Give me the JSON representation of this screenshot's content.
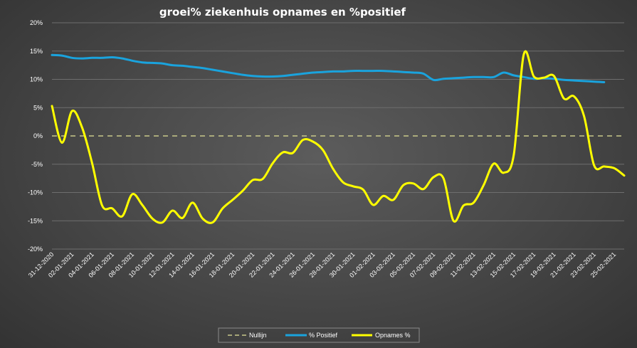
{
  "chart_data": {
    "type": "line",
    "title": "groei% ziekenhuis opnames en %positief",
    "xlabel": "",
    "ylabel": "",
    "ylim": [
      -20,
      20
    ],
    "y_ticks": [
      20,
      15,
      10,
      5,
      0,
      -5,
      -10,
      -15,
      -20
    ],
    "y_tick_labels": [
      "20%",
      "15%",
      "10%",
      "5%",
      "0%",
      "-5%",
      "-10%",
      "-15%",
      "-20%"
    ],
    "x_start": "31-12-2020",
    "x_end": "26-02-2021",
    "x_tick_labels": [
      "31-12-2020",
      "02-01-2021",
      "04-01-2021",
      "06-01-2021",
      "08-01-2021",
      "10-01-2021",
      "12-01-2021",
      "14-01-2021",
      "16-01-2021",
      "18-01-2021",
      "20-01-2021",
      "22-01-2021",
      "24-01-2021",
      "26-01-2021",
      "28-01-2021",
      "30-01-2021",
      "01-02-2021",
      "03-02-2021",
      "05-02-2021",
      "07-02-2021",
      "09-02-2021",
      "11-02-2021",
      "13-02-2021",
      "15-02-2021",
      "17-02-2021",
      "19-02-2021",
      "21-02-2021",
      "23-02-2021",
      "25-02-2021"
    ],
    "grid": true,
    "legend_position": "bottom",
    "series": [
      {
        "name": "Nullijn",
        "color": "#c9c98a",
        "dashed": true,
        "x": [
          "31-12-2020",
          "26-02-2021"
        ],
        "values": [
          0,
          0
        ]
      },
      {
        "name": "% Positief",
        "color": "#1aa3dd",
        "dashed": false,
        "x": [
          "31-12-2020",
          "01-01-2021",
          "02-01-2021",
          "03-01-2021",
          "04-01-2021",
          "05-01-2021",
          "06-01-2021",
          "07-01-2021",
          "08-01-2021",
          "09-01-2021",
          "10-01-2021",
          "11-01-2021",
          "12-01-2021",
          "13-01-2021",
          "14-01-2021",
          "15-01-2021",
          "16-01-2021",
          "17-01-2021",
          "18-01-2021",
          "19-01-2021",
          "20-01-2021",
          "21-01-2021",
          "22-01-2021",
          "23-01-2021",
          "24-01-2021",
          "25-01-2021",
          "26-01-2021",
          "27-01-2021",
          "28-01-2021",
          "29-01-2021",
          "30-01-2021",
          "31-01-2021",
          "01-02-2021",
          "02-02-2021",
          "03-02-2021",
          "04-02-2021",
          "05-02-2021",
          "06-02-2021",
          "07-02-2021",
          "08-02-2021",
          "09-02-2021",
          "10-02-2021",
          "11-02-2021",
          "12-02-2021",
          "13-02-2021",
          "14-02-2021",
          "15-02-2021",
          "16-02-2021",
          "17-02-2021",
          "18-02-2021",
          "19-02-2021",
          "20-02-2021",
          "21-02-2021",
          "22-02-2021",
          "23-02-2021",
          "24-02-2021"
        ],
        "values": [
          14.3,
          14.2,
          13.8,
          13.7,
          13.8,
          13.8,
          13.9,
          13.7,
          13.3,
          13.0,
          12.9,
          12.8,
          12.5,
          12.4,
          12.2,
          12.0,
          11.7,
          11.4,
          11.1,
          10.8,
          10.6,
          10.5,
          10.5,
          10.6,
          10.8,
          11.0,
          11.2,
          11.3,
          11.4,
          11.4,
          11.5,
          11.5,
          11.5,
          11.5,
          11.4,
          11.3,
          11.2,
          11.0,
          9.9,
          10.1,
          10.2,
          10.3,
          10.4,
          10.4,
          10.4,
          11.2,
          10.7,
          10.4,
          10.1,
          10.2,
          10.1,
          9.9,
          9.8,
          9.7,
          9.6,
          9.5
        ]
      },
      {
        "name": "Opnames %",
        "color": "#ffff00",
        "dashed": false,
        "x": [
          "31-12-2020",
          "01-01-2021",
          "02-01-2021",
          "03-01-2021",
          "04-01-2021",
          "05-01-2021",
          "06-01-2021",
          "07-01-2021",
          "08-01-2021",
          "09-01-2021",
          "10-01-2021",
          "11-01-2021",
          "12-01-2021",
          "13-01-2021",
          "14-01-2021",
          "15-01-2021",
          "16-01-2021",
          "17-01-2021",
          "18-01-2021",
          "19-01-2021",
          "20-01-2021",
          "21-01-2021",
          "22-01-2021",
          "23-01-2021",
          "24-01-2021",
          "25-01-2021",
          "26-01-2021",
          "27-01-2021",
          "28-01-2021",
          "29-01-2021",
          "30-01-2021",
          "31-01-2021",
          "01-02-2021",
          "02-02-2021",
          "03-02-2021",
          "04-02-2021",
          "05-02-2021",
          "06-02-2021",
          "07-02-2021",
          "08-02-2021",
          "09-02-2021",
          "10-02-2021",
          "11-02-2021",
          "12-02-2021",
          "13-02-2021",
          "14-02-2021",
          "15-02-2021",
          "16-02-2021",
          "17-02-2021",
          "18-02-2021",
          "19-02-2021",
          "20-02-2021",
          "21-02-2021",
          "22-02-2021",
          "23-02-2021",
          "24-02-2021",
          "25-02-2021",
          "26-02-2021"
        ],
        "values": [
          5.3,
          -1.2,
          4.4,
          1.5,
          -4.8,
          -12.3,
          -12.8,
          -14.2,
          -10.3,
          -12.2,
          -14.6,
          -15.3,
          -13.2,
          -14.5,
          -11.8,
          -14.6,
          -15.3,
          -12.8,
          -11.3,
          -9.7,
          -7.8,
          -7.6,
          -4.8,
          -2.9,
          -3.0,
          -0.7,
          -1.0,
          -2.5,
          -5.8,
          -8.2,
          -8.9,
          -9.5,
          -12.2,
          -10.6,
          -11.3,
          -8.7,
          -8.4,
          -9.4,
          -7.3,
          -7.5,
          -15.0,
          -12.3,
          -11.8,
          -8.7,
          -4.9,
          -6.5,
          -3.4,
          14.4,
          10.5,
          10.3,
          10.6,
          6.6,
          7.0,
          3.5,
          -5.2,
          -5.4,
          -5.7,
          -7.0
        ]
      }
    ]
  }
}
